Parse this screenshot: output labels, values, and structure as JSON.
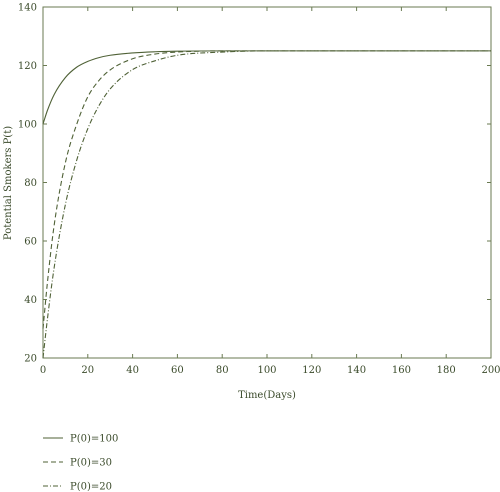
{
  "chart_data": {
    "type": "line",
    "title": "",
    "xlabel": "Time(Days)",
    "ylabel": "Potential Smokers P(t)",
    "xlim": [
      0,
      200
    ],
    "ylim": [
      20,
      140
    ],
    "xticks": [
      0,
      20,
      40,
      60,
      80,
      100,
      120,
      140,
      160,
      180,
      200
    ],
    "yticks": [
      20,
      40,
      60,
      80,
      100,
      120,
      140
    ],
    "grid": false,
    "legend_position": "bottom-left",
    "line_color": "#4f6136",
    "series": [
      {
        "name": "P(0)=100",
        "style": "solid",
        "x": [
          0,
          2,
          5,
          10,
          15,
          20,
          25,
          30,
          40,
          50,
          60,
          80,
          100,
          120,
          150,
          200
        ],
        "y": [
          100,
          104.7,
          110.1,
          115.9,
          119.4,
          121.4,
          122.7,
          123.5,
          124.3,
          124.7,
          124.9,
          125,
          125,
          125,
          125,
          125
        ]
      },
      {
        "name": "P(0)=30",
        "style": "dashed",
        "x": [
          0,
          2,
          5,
          10,
          15,
          20,
          25,
          30,
          40,
          50,
          60,
          80,
          100,
          120,
          150,
          200
        ],
        "y": [
          30,
          46,
          65.5,
          86.8,
          99.8,
          109.3,
          114.9,
          118.5,
          122.3,
          123.9,
          124.6,
          125,
          125,
          125,
          125,
          125
        ]
      },
      {
        "name": "P(0)=20",
        "style": "dashdot",
        "x": [
          0,
          2,
          5,
          10,
          15,
          20,
          25,
          30,
          40,
          50,
          60,
          80,
          100,
          120,
          150,
          200
        ],
        "y": [
          20,
          33.5,
          51,
          72.5,
          87.5,
          98.4,
          106.3,
          112,
          118.6,
          121.6,
          123.5,
          124.6,
          125,
          125,
          125,
          125
        ]
      }
    ]
  }
}
